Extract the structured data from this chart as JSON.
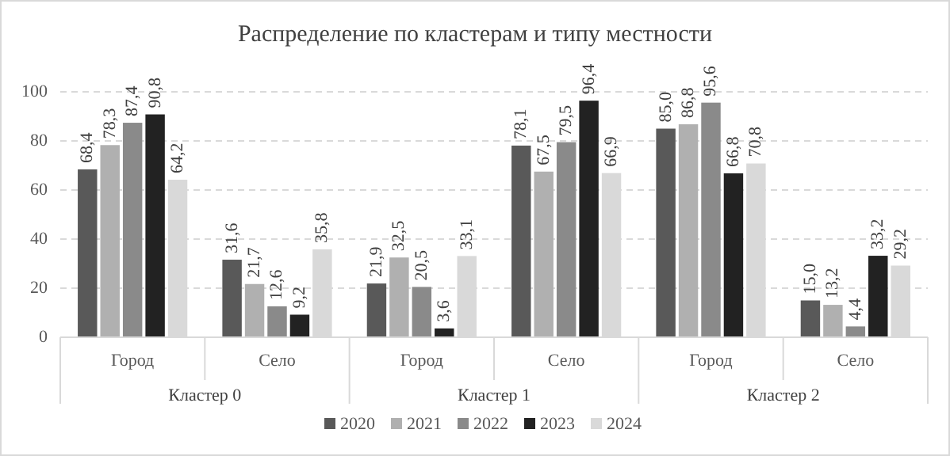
{
  "chart_data": {
    "type": "bar",
    "title": "Распределение по кластерам и типу местности",
    "categories": [
      "Город",
      "Село",
      "Город",
      "Село",
      "Город",
      "Село"
    ],
    "annotations": [
      "Кластер 0",
      "Кластер 1",
      "Кластер 2"
    ],
    "series": [
      {
        "name": "2020",
        "color": "#595959",
        "values": [
          68.4,
          31.6,
          21.9,
          78.1,
          85.0,
          15.0
        ],
        "value_labels": [
          "68,4",
          "31,6",
          "21,9",
          "78,1",
          "85,0",
          "15,0"
        ]
      },
      {
        "name": "2021",
        "color": "#b0b0b0",
        "values": [
          78.3,
          21.7,
          32.5,
          67.5,
          86.8,
          13.2
        ],
        "value_labels": [
          "78,3",
          "21,7",
          "32,5",
          "67,5",
          "86,8",
          "13,2"
        ]
      },
      {
        "name": "2022",
        "color": "#8a8a8a",
        "values": [
          87.4,
          12.6,
          20.5,
          79.5,
          95.6,
          4.4
        ],
        "value_labels": [
          "87,4",
          "12,6",
          "20,5",
          "79,5",
          "95,6",
          "4,4"
        ]
      },
      {
        "name": "2023",
        "color": "#222222",
        "values": [
          90.8,
          9.2,
          3.6,
          96.4,
          66.8,
          33.2
        ],
        "value_labels": [
          "90,8",
          "9,2",
          "3,6",
          "96,4",
          "66,8",
          "33,2"
        ]
      },
      {
        "name": "2024",
        "color": "#d9d9d9",
        "values": [
          64.2,
          35.8,
          33.1,
          66.9,
          70.8,
          29.2
        ],
        "value_labels": [
          "64,2",
          "35,8",
          "33,1",
          "66,9",
          "70,8",
          "29,2"
        ]
      }
    ],
    "ylim": [
      0,
      100
    ],
    "yticks": [
      0,
      20,
      40,
      60,
      80,
      100
    ],
    "grid": "y",
    "legend": "bottom"
  }
}
